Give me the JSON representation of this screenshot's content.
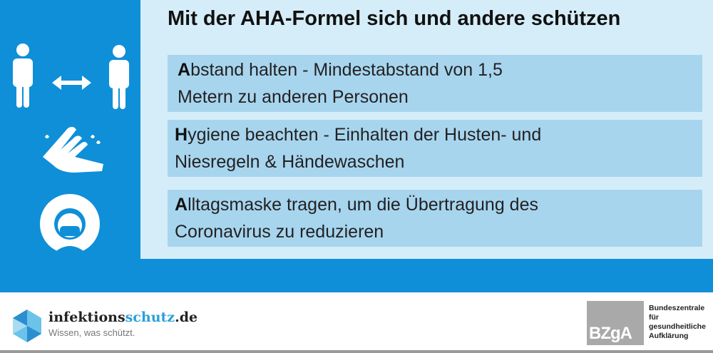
{
  "title": "Mit der AHA-Formel sich und andere schützen",
  "items": [
    {
      "initial": "A",
      "rest_line1": "bstand halten - Mindestabstand von 1,5",
      "line2": "Metern zu anderen Personen",
      "icon": "distance-icon"
    },
    {
      "initial": "H",
      "rest_line1": "ygiene beachten - Einhalten der Husten- und",
      "line2": "Niesregeln & Händewaschen",
      "icon": "hand-washing-icon"
    },
    {
      "initial": "A",
      "rest_line1": "lltagsmaske tragen, um die Übertragung des",
      "line2": "Coronavirus zu reduzieren",
      "icon": "face-mask-icon"
    }
  ],
  "footer": {
    "logo_name_part1": "infektions",
    "logo_name_part2": "schutz",
    "logo_name_part3": ".de",
    "tagline": "Wissen, was schützt.",
    "bzga_logo": "BZgA",
    "bzga_text": [
      "Bundeszentrale",
      "für",
      "gesundheitliche",
      "Aufklärung"
    ]
  },
  "colors": {
    "blue": "#0f8fd8",
    "panel": "#d5edf9",
    "box": "#a8d5ee"
  }
}
